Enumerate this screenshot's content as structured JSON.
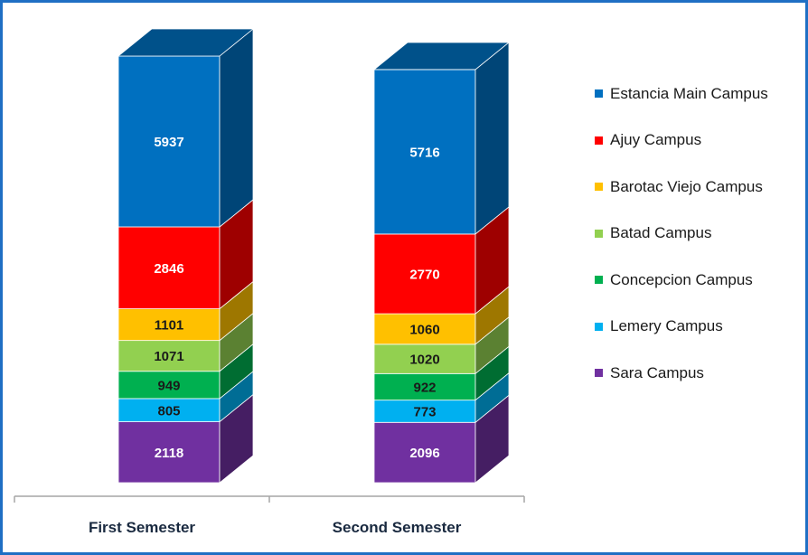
{
  "chart_data": {
    "type": "bar",
    "stacked": true,
    "three_d": true,
    "categories": [
      "First Semester",
      "Second Semester"
    ],
    "series": [
      {
        "name": "Sara Campus",
        "values": [
          2118,
          2096
        ],
        "color": "#7030a0",
        "label_color": "#ffffff"
      },
      {
        "name": "Lemery Campus",
        "values": [
          805,
          773
        ],
        "color": "#00b0f0",
        "label_color": "#1a1a1a"
      },
      {
        "name": "Concepcion Campus",
        "values": [
          949,
          922
        ],
        "color": "#00b050",
        "label_color": "#1a1a1a"
      },
      {
        "name": "Batad Campus",
        "values": [
          1071,
          1020
        ],
        "color": "#92d050",
        "label_color": "#1a1a1a"
      },
      {
        "name": "Barotac Viejo Campus",
        "values": [
          1101,
          1060
        ],
        "color": "#ffc000",
        "label_color": "#1a1a1a"
      },
      {
        "name": "Ajuy Campus",
        "values": [
          2846,
          2770
        ],
        "color": "#ff0000",
        "label_color": "#ffffff"
      },
      {
        "name": "Estancia Main Campus",
        "values": [
          5937,
          5716
        ],
        "color": "#0070c0",
        "label_color": "#ffffff"
      }
    ],
    "legend_order": [
      "Estancia Main Campus",
      "Ajuy Campus",
      "Barotac Viejo Campus",
      "Batad Campus",
      "Concepcion Campus",
      "Lemery Campus",
      "Sara Campus"
    ],
    "legend_position": "right",
    "grid": false
  },
  "colors": {
    "border": "#1f6fc4",
    "axis": "#a6a6a6"
  }
}
